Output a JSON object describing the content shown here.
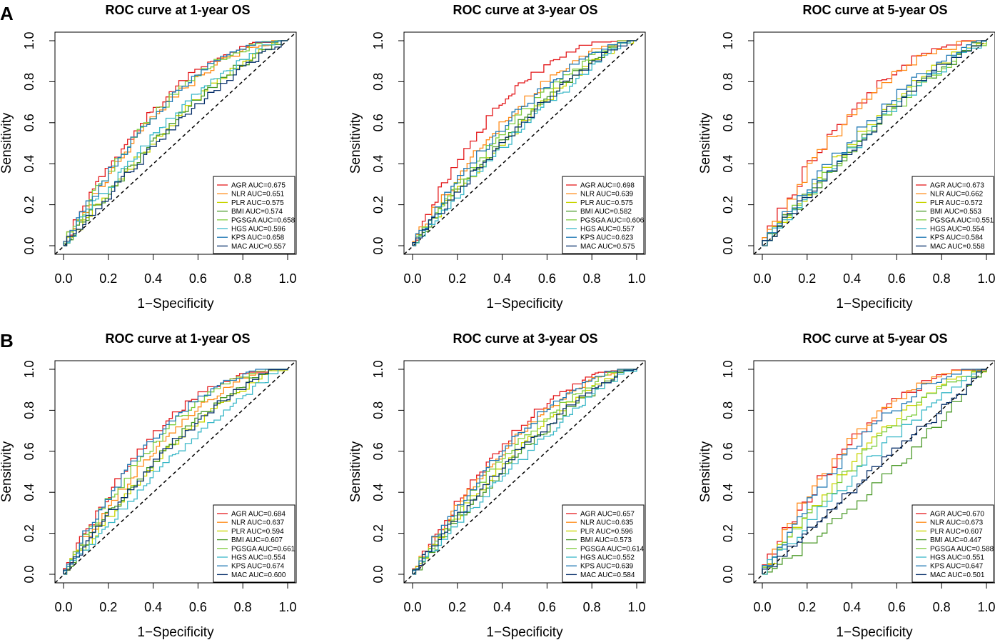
{
  "panels": [
    {
      "letter": "A"
    },
    {
      "letter": "B"
    }
  ],
  "series_colors": {
    "AGR": "#e41a1c",
    "NLR": "#ff8c1a",
    "PLR": "#c8d400",
    "BMI": "#4c9a2a",
    "PGSGA": "#7fcd3f",
    "HGS": "#3bb8c8",
    "KPS": "#1f78b4",
    "MAC": "#08306b"
  },
  "chart_data": [
    {
      "type": "line",
      "panel": "A",
      "title": "ROC curve at 1-year OS",
      "xlabel": "1−Specificity",
      "ylabel": "Sensitivity",
      "xlim": [
        0,
        1
      ],
      "ylim": [
        0,
        1
      ],
      "xticks": [
        "0.0",
        "0.2",
        "0.4",
        "0.6",
        "0.8",
        "1.0"
      ],
      "yticks": [
        "0.0",
        "0.2",
        "0.4",
        "0.6",
        "0.8",
        "1.0"
      ],
      "diagonal": true,
      "legend_position": "bottom-right",
      "series": [
        {
          "name": "AGR",
          "auc": "0.675",
          "label": "AGR AUC=0.675"
        },
        {
          "name": "NLR",
          "auc": "0.651",
          "label": "NLR AUC=0.651"
        },
        {
          "name": "PLR",
          "auc": "0.575",
          "label": "PLR AUC=0.575"
        },
        {
          "name": "BMI",
          "auc": "0.574",
          "label": "BMI AUC=0.574"
        },
        {
          "name": "PGSGA",
          "auc": "0.658",
          "label": "PGSGA AUC=0.658"
        },
        {
          "name": "HGS",
          "auc": "0.596",
          "label": "HGS AUC=0.596"
        },
        {
          "name": "KPS",
          "auc": "0.658",
          "label": "KPS AUC=0.658"
        },
        {
          "name": "MAC",
          "auc": "0.557",
          "label": "MAC AUC=0.557"
        }
      ]
    },
    {
      "type": "line",
      "panel": "A",
      "title": "ROC curve at 3-year OS",
      "xlabel": "1−Specificity",
      "ylabel": "Sensitivity",
      "xlim": [
        0,
        1
      ],
      "ylim": [
        0,
        1
      ],
      "xticks": [
        "0.0",
        "0.2",
        "0.4",
        "0.6",
        "0.8",
        "1.0"
      ],
      "yticks": [
        "0.0",
        "0.2",
        "0.4",
        "0.6",
        "0.8",
        "1.0"
      ],
      "diagonal": true,
      "legend_position": "bottom-right",
      "series": [
        {
          "name": "AGR",
          "auc": "0.698",
          "label": "AGR AUC=0.698"
        },
        {
          "name": "NLR",
          "auc": "0.639",
          "label": "NLR AUC=0.639"
        },
        {
          "name": "PLR",
          "auc": "0.575",
          "label": "PLR AUC=0.575"
        },
        {
          "name": "BMI",
          "auc": "0.582",
          "label": "BMI AUC=0.582"
        },
        {
          "name": "PGSGA",
          "auc": "0.606",
          "label": "PGSGA AUC=0.606"
        },
        {
          "name": "HGS",
          "auc": "0.557",
          "label": "HGS AUC=0.557"
        },
        {
          "name": "KPS",
          "auc": "0.623",
          "label": "KPS AUC=0.623"
        },
        {
          "name": "MAC",
          "auc": "0.575",
          "label": "MAC AUC=0.575"
        }
      ]
    },
    {
      "type": "line",
      "panel": "A",
      "title": "ROC curve at 5-year OS",
      "xlabel": "1−Specificity",
      "ylabel": "Sensitivity",
      "xlim": [
        0,
        1
      ],
      "ylim": [
        0,
        1
      ],
      "xticks": [
        "0.0",
        "0.2",
        "0.4",
        "0.6",
        "0.8",
        "1.0"
      ],
      "yticks": [
        "0.0",
        "0.2",
        "0.4",
        "0.6",
        "0.8",
        "1.0"
      ],
      "diagonal": true,
      "legend_position": "bottom-right",
      "series": [
        {
          "name": "AGR",
          "auc": "0.673",
          "label": "AGR AUC=0.673"
        },
        {
          "name": "NLR",
          "auc": "0.662",
          "label": "NLR AUC=0.662"
        },
        {
          "name": "PLR",
          "auc": "0.572",
          "label": "PLR AUC=0.572"
        },
        {
          "name": "BMI",
          "auc": "0.553",
          "label": "BMI AUC=0.553"
        },
        {
          "name": "PGSGA",
          "auc": "0.551",
          "label": "PGSGA AUC=0.551"
        },
        {
          "name": "HGS",
          "auc": "0.554",
          "label": "HGS AUC=0.554"
        },
        {
          "name": "KPS",
          "auc": "0.584",
          "label": "KPS AUC=0.584"
        },
        {
          "name": "MAC",
          "auc": "0.558",
          "label": "MAC AUC=0.558"
        }
      ]
    },
    {
      "type": "line",
      "panel": "B",
      "title": "ROC curve at 1-year OS",
      "xlabel": "1−Specificity",
      "ylabel": "Sensitivity",
      "xlim": [
        0,
        1
      ],
      "ylim": [
        0,
        1
      ],
      "xticks": [
        "0.0",
        "0.2",
        "0.4",
        "0.6",
        "0.8",
        "1.0"
      ],
      "yticks": [
        "0.0",
        "0.2",
        "0.4",
        "0.6",
        "0.8",
        "1.0"
      ],
      "diagonal": true,
      "legend_position": "bottom-right",
      "series": [
        {
          "name": "AGR",
          "auc": "0.684",
          "label": "AGR AUC=0.684"
        },
        {
          "name": "NLR",
          "auc": "0.637",
          "label": "NLR AUC=0.637"
        },
        {
          "name": "PLR",
          "auc": "0.594",
          "label": "PLR AUC=0.594"
        },
        {
          "name": "BMI",
          "auc": "0.607",
          "label": "BMI AUC=0.607"
        },
        {
          "name": "PGSGA",
          "auc": "0.661",
          "label": "PGSGA AUC=0.661"
        },
        {
          "name": "HGS",
          "auc": "0.554",
          "label": "HGS AUC=0.554"
        },
        {
          "name": "KPS",
          "auc": "0.674",
          "label": "KPS AUC=0.674"
        },
        {
          "name": "MAC",
          "auc": "0.600",
          "label": "MAC AUC=0.600"
        }
      ]
    },
    {
      "type": "line",
      "panel": "B",
      "title": "ROC curve at 3-year OS",
      "xlabel": "1−Specificity",
      "ylabel": "Sensitivity",
      "xlim": [
        0,
        1
      ],
      "ylim": [
        0,
        1
      ],
      "xticks": [
        "0.0",
        "0.2",
        "0.4",
        "0.6",
        "0.8",
        "1.0"
      ],
      "yticks": [
        "0.0",
        "0.2",
        "0.4",
        "0.6",
        "0.8",
        "1.0"
      ],
      "diagonal": true,
      "legend_position": "bottom-right",
      "series": [
        {
          "name": "AGR",
          "auc": "0.657",
          "label": "AGR AUC=0.657"
        },
        {
          "name": "NLR",
          "auc": "0.635",
          "label": "NLR AUC=0.635"
        },
        {
          "name": "PLR",
          "auc": "0.596",
          "label": "PLR AUC=0.596"
        },
        {
          "name": "BMI",
          "auc": "0.573",
          "label": "BMI AUC=0.573"
        },
        {
          "name": "PGSGA",
          "auc": "0.614",
          "label": "PGSGA AUC=0.614"
        },
        {
          "name": "HGS",
          "auc": "0.552",
          "label": "HGS AUC=0.552"
        },
        {
          "name": "KPS",
          "auc": "0.639",
          "label": "KPS AUC=0.639"
        },
        {
          "name": "MAC",
          "auc": "0.584",
          "label": "MAC AUC=0.584"
        }
      ]
    },
    {
      "type": "line",
      "panel": "B",
      "title": "ROC curve at 5-year OS",
      "xlabel": "1−Specificity",
      "ylabel": "Sensitivity",
      "xlim": [
        0,
        1
      ],
      "ylim": [
        0,
        1
      ],
      "xticks": [
        "0.0",
        "0.2",
        "0.4",
        "0.6",
        "0.8",
        "1.0"
      ],
      "yticks": [
        "0.0",
        "0.2",
        "0.4",
        "0.6",
        "0.8",
        "1.0"
      ],
      "diagonal": true,
      "legend_position": "bottom-right",
      "series": [
        {
          "name": "AGR",
          "auc": "0.670",
          "label": "AGR AUC=0.670"
        },
        {
          "name": "NLR",
          "auc": "0.673",
          "label": "NLR AUC=0.673"
        },
        {
          "name": "PLR",
          "auc": "0.607",
          "label": "PLR AUC=0.607"
        },
        {
          "name": "BMI",
          "auc": "0.447",
          "label": "BMI AUC=0.447"
        },
        {
          "name": "PGSGA",
          "auc": "0.588",
          "label": "PGSGA AUC=0.588"
        },
        {
          "name": "HGS",
          "auc": "0.551",
          "label": "HGS AUC=0.551"
        },
        {
          "name": "KPS",
          "auc": "0.647",
          "label": "KPS AUC=0.647"
        },
        {
          "name": "MAC",
          "auc": "0.501",
          "label": "MAC AUC=0.501"
        }
      ]
    }
  ]
}
